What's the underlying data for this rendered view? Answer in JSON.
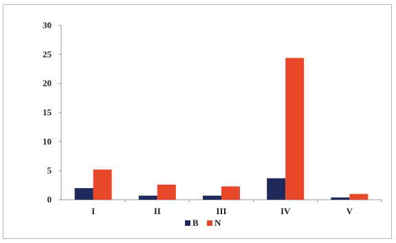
{
  "chart_data": {
    "type": "bar",
    "categories": [
      "I",
      "II",
      "III",
      "IV",
      "V"
    ],
    "series": [
      {
        "name": "B",
        "color": "#1f2a5c",
        "values": [
          2.0,
          0.7,
          0.7,
          3.7,
          0.4
        ]
      },
      {
        "name": "N",
        "color": "#e8482a",
        "values": [
          5.2,
          2.6,
          2.3,
          24.4,
          1.0
        ]
      }
    ],
    "ylim": [
      0,
      30
    ],
    "yticks": [
      0,
      5,
      10,
      15,
      20,
      25,
      30
    ],
    "title": "",
    "xlabel": "",
    "ylabel": "",
    "grid": false,
    "legend": "bottom-center"
  }
}
